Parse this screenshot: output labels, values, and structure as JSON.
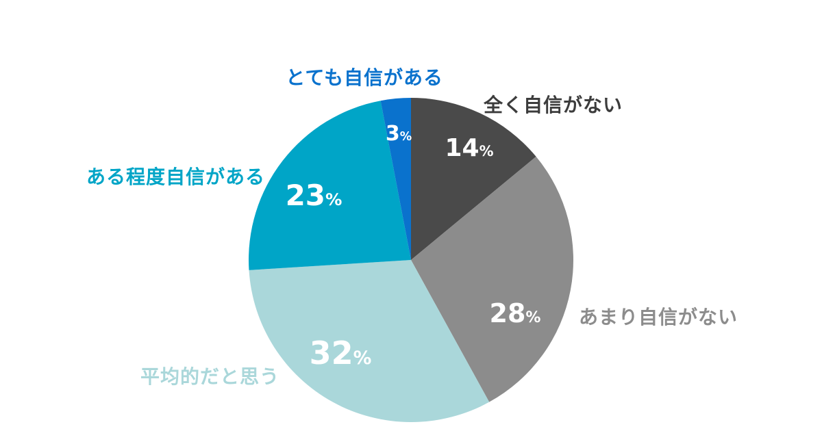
{
  "chart_data": {
    "type": "pie",
    "title": "",
    "background": "#ffffff",
    "start_angle_deg": -90,
    "direction": "clockwise",
    "value_labels_inside": true,
    "category_labels_outside": true,
    "segments": [
      {
        "id": "no-confidence",
        "label": "全く自信がない",
        "value": 14,
        "unit": "%",
        "color": "#4a4a4a",
        "label_color": "#3c3c3c"
      },
      {
        "id": "not-very-confident",
        "label": "あまり自信がない",
        "value": 28,
        "unit": "%",
        "color": "#8c8c8c",
        "label_color": "#8c8c8c"
      },
      {
        "id": "average",
        "label": "平均的だと思う",
        "value": 32,
        "unit": "%",
        "color": "#aad7da",
        "label_color": "#aad7da"
      },
      {
        "id": "somewhat-confident",
        "label": "ある程度自信がある",
        "value": 23,
        "unit": "%",
        "color": "#00a5c7",
        "label_color": "#00a5c7"
      },
      {
        "id": "very-confident",
        "label": "とても自信がある",
        "value": 3,
        "unit": "%",
        "color": "#0a72cd",
        "label_color": "#0a72cd"
      }
    ]
  }
}
